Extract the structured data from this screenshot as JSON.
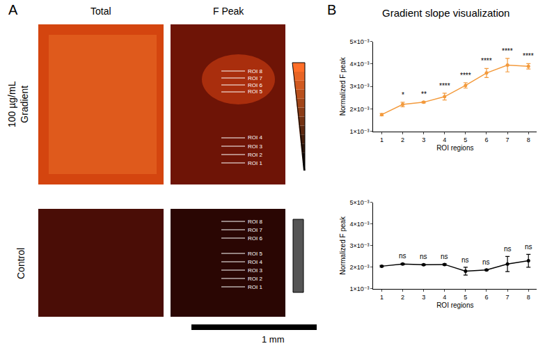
{
  "panel_a": {
    "letter": "A",
    "columns": [
      "Total",
      "F Peak"
    ],
    "rows": [
      {
        "label": "100 µg/mL Gradient",
        "roi_labels": [
          "ROI 8",
          "ROI 7",
          "ROI 6",
          "ROI 5",
          "ROI 4",
          "ROI 3",
          "ROI 2",
          "ROI 1"
        ]
      },
      {
        "label": "Control",
        "roi_labels": [
          "ROI 8",
          "ROI 7",
          "ROI 6",
          "ROI 5",
          "ROI 4",
          "ROI 3",
          "ROI 2",
          "ROI 1"
        ]
      }
    ],
    "scale_bar": "1 mm"
  },
  "panel_b": {
    "letter": "B",
    "title": "Gradient slope visualization"
  },
  "chart_data": [
    {
      "type": "line",
      "x": [
        1,
        2,
        3,
        4,
        5,
        6,
        7,
        8
      ],
      "values": [
        0.00175,
        0.0022,
        0.0023,
        0.00255,
        0.00305,
        0.0036,
        0.00395,
        0.0039
      ],
      "errors": [
        5e-05,
        0.0001,
        3e-05,
        0.00015,
        0.00012,
        0.0002,
        0.0003,
        0.00012
      ],
      "significance": [
        "",
        "*",
        "**",
        "****",
        "****",
        "****",
        "****",
        "****"
      ],
      "color": "#f39a3c",
      "marker": "circle",
      "xlabel": "ROI regions",
      "ylabel": "Normalized F peak",
      "xlim": [
        0.6,
        8.4
      ],
      "xticks": [
        1,
        2,
        3,
        4,
        5,
        6,
        7,
        8
      ],
      "ylim": [
        0.001,
        0.005
      ],
      "yticks": [
        {
          "value": 0.001,
          "label": "1×10⁻³"
        },
        {
          "value": 0.002,
          "label": "2×10⁻³"
        },
        {
          "value": 0.003,
          "label": "3×10⁻³"
        },
        {
          "value": 0.004,
          "label": "4×10⁻³"
        },
        {
          "value": 0.005,
          "label": "5×10⁻³"
        }
      ],
      "grid": false
    },
    {
      "type": "line",
      "x": [
        1,
        2,
        3,
        4,
        5,
        6,
        7,
        8
      ],
      "values": [
        0.00205,
        0.00215,
        0.00212,
        0.00213,
        0.00182,
        0.00188,
        0.00215,
        0.0023
      ],
      "errors": [
        3e-05,
        3e-05,
        3e-05,
        3e-05,
        0.00018,
        3e-05,
        0.00035,
        0.0003
      ],
      "significance": [
        "",
        "ns",
        "ns",
        "ns",
        "ns",
        "ns",
        "ns",
        "ns"
      ],
      "color": "#000000",
      "marker": "circle",
      "xlabel": "ROI regions",
      "ylabel": "Normalized F peak",
      "xlim": [
        0.6,
        8.4
      ],
      "xticks": [
        1,
        2,
        3,
        4,
        5,
        6,
        7,
        8
      ],
      "ylim": [
        0.001,
        0.005
      ],
      "yticks": [
        {
          "value": 0.001,
          "label": "1×10⁻³"
        },
        {
          "value": 0.002,
          "label": "2×10⁻³"
        },
        {
          "value": 0.003,
          "label": "3×10⁻³"
        },
        {
          "value": 0.004,
          "label": "4×10⁻³"
        },
        {
          "value": 0.005,
          "label": "5×10⁻³"
        }
      ],
      "grid": false
    }
  ]
}
